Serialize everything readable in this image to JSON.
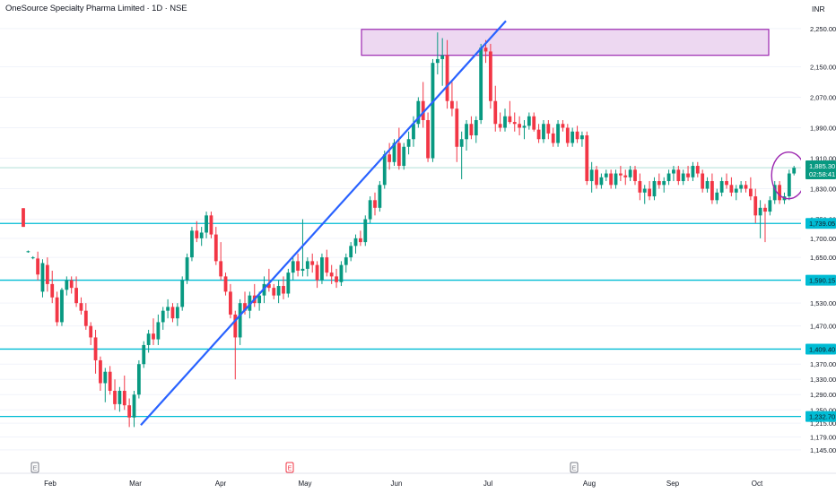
{
  "header": {
    "title": "OneSource Specialty Pharma Limited · 1D · NSE",
    "currency": "INR"
  },
  "colors": {
    "up": "#089981",
    "down": "#f23645",
    "trendline": "#2962ff",
    "support": "#00bcd4",
    "resistance_zone": "#9c27b0",
    "last_price_line": "#089981"
  },
  "chart_data": {
    "type": "candlestick",
    "title": "OneSource Specialty Pharma Limited · 1D · NSE",
    "currency": "INR",
    "ylim": [
      1126,
      2278
    ],
    "y_tick_labels": [
      "2,250.00",
      "2,150.00",
      "2,070.00",
      "1,990.00",
      "1,910.00",
      "1,830.00",
      "1,750.00",
      "1,700.00",
      "1,650.00",
      "1,590.00",
      "1,530.00",
      "1,470.00",
      "1,409.40",
      "1,370.00",
      "1,330.00",
      "1,290.00",
      "1,250.00",
      "1,215.00",
      "1,179.00",
      "1,145.00"
    ],
    "x_tick_labels": [
      "Feb",
      "Mar",
      "Apr",
      "May",
      "Jun",
      "Jul",
      "Aug",
      "Sep",
      "Oct"
    ],
    "earnings_markers": [
      {
        "label": "E",
        "month": "Feb",
        "color": "#787b86"
      },
      {
        "label": "E",
        "month": "May",
        "color": "#f23645"
      },
      {
        "label": "E",
        "month": "Aug",
        "color": "#787b86"
      }
    ],
    "last_price": {
      "price": "1,885.30",
      "countdown": "02:58:41"
    },
    "support_levels": [
      {
        "price": 1739.05,
        "label": "1,739.05"
      },
      {
        "price": 1590.15,
        "label": "1,590.15"
      },
      {
        "price": 1409.4,
        "label": "1,409.40"
      },
      {
        "price": 1232.7,
        "label": "1,232.70"
      }
    ],
    "resistance_zone": {
      "low": 2180,
      "high": 2248
    },
    "trendline": {
      "from_price": 1210,
      "from_month": "Mar",
      "to_price": 2270,
      "to_month": "Jul"
    },
    "highlight_circle": {
      "around": "latest candles near 1,885"
    },
    "candles": [
      {
        "o": 1779,
        "h": 1779,
        "l": 1730,
        "c": 1730
      },
      {
        "o": 1665,
        "h": 1668,
        "l": 1662,
        "c": 1666
      },
      {
        "o": 1648,
        "h": 1653,
        "l": 1645,
        "c": 1650
      },
      {
        "o": 1647,
        "h": 1665,
        "l": 1590,
        "c": 1605
      },
      {
        "o": 1560,
        "h": 1645,
        "l": 1545,
        "c": 1635
      },
      {
        "o": 1630,
        "h": 1650,
        "l": 1560,
        "c": 1580
      },
      {
        "o": 1580,
        "h": 1615,
        "l": 1530,
        "c": 1545
      },
      {
        "o": 1545,
        "h": 1560,
        "l": 1470,
        "c": 1480
      },
      {
        "o": 1480,
        "h": 1570,
        "l": 1470,
        "c": 1565
      },
      {
        "o": 1565,
        "h": 1600,
        "l": 1550,
        "c": 1590
      },
      {
        "o": 1590,
        "h": 1600,
        "l": 1555,
        "c": 1570
      },
      {
        "o": 1570,
        "h": 1600,
        "l": 1520,
        "c": 1530
      },
      {
        "o": 1530,
        "h": 1545,
        "l": 1500,
        "c": 1510
      },
      {
        "o": 1510,
        "h": 1530,
        "l": 1460,
        "c": 1470
      },
      {
        "o": 1470,
        "h": 1480,
        "l": 1420,
        "c": 1440
      },
      {
        "o": 1440,
        "h": 1460,
        "l": 1345,
        "c": 1380
      },
      {
        "o": 1380,
        "h": 1390,
        "l": 1300,
        "c": 1320
      },
      {
        "o": 1320,
        "h": 1360,
        "l": 1270,
        "c": 1350
      },
      {
        "o": 1350,
        "h": 1365,
        "l": 1290,
        "c": 1300
      },
      {
        "o": 1300,
        "h": 1330,
        "l": 1250,
        "c": 1265
      },
      {
        "o": 1265,
        "h": 1310,
        "l": 1245,
        "c": 1300
      },
      {
        "o": 1300,
        "h": 1340,
        "l": 1250,
        "c": 1262
      },
      {
        "o": 1262,
        "h": 1280,
        "l": 1205,
        "c": 1230
      },
      {
        "o": 1230,
        "h": 1300,
        "l": 1205,
        "c": 1290
      },
      {
        "o": 1290,
        "h": 1380,
        "l": 1280,
        "c": 1370
      },
      {
        "o": 1370,
        "h": 1430,
        "l": 1360,
        "c": 1420
      },
      {
        "o": 1420,
        "h": 1460,
        "l": 1400,
        "c": 1450
      },
      {
        "o": 1450,
        "h": 1490,
        "l": 1420,
        "c": 1435
      },
      {
        "o": 1435,
        "h": 1500,
        "l": 1420,
        "c": 1480
      },
      {
        "o": 1480,
        "h": 1520,
        "l": 1460,
        "c": 1510
      },
      {
        "o": 1510,
        "h": 1540,
        "l": 1490,
        "c": 1520
      },
      {
        "o": 1520,
        "h": 1530,
        "l": 1480,
        "c": 1490
      },
      {
        "o": 1490,
        "h": 1530,
        "l": 1470,
        "c": 1520
      },
      {
        "o": 1520,
        "h": 1600,
        "l": 1510,
        "c": 1590
      },
      {
        "o": 1590,
        "h": 1660,
        "l": 1580,
        "c": 1650
      },
      {
        "o": 1650,
        "h": 1730,
        "l": 1640,
        "c": 1720
      },
      {
        "o": 1720,
        "h": 1745,
        "l": 1690,
        "c": 1700
      },
      {
        "o": 1700,
        "h": 1730,
        "l": 1680,
        "c": 1715
      },
      {
        "o": 1715,
        "h": 1770,
        "l": 1700,
        "c": 1760
      },
      {
        "o": 1760,
        "h": 1770,
        "l": 1700,
        "c": 1710
      },
      {
        "o": 1710,
        "h": 1730,
        "l": 1630,
        "c": 1640
      },
      {
        "o": 1640,
        "h": 1690,
        "l": 1590,
        "c": 1600
      },
      {
        "o": 1600,
        "h": 1610,
        "l": 1550,
        "c": 1560
      },
      {
        "o": 1560,
        "h": 1580,
        "l": 1490,
        "c": 1500
      },
      {
        "o": 1500,
        "h": 1510,
        "l": 1330,
        "c": 1440
      },
      {
        "o": 1440,
        "h": 1540,
        "l": 1420,
        "c": 1530
      },
      {
        "o": 1530,
        "h": 1560,
        "l": 1500,
        "c": 1510
      },
      {
        "o": 1510,
        "h": 1560,
        "l": 1490,
        "c": 1550
      },
      {
        "o": 1550,
        "h": 1580,
        "l": 1520,
        "c": 1530
      },
      {
        "o": 1530,
        "h": 1560,
        "l": 1510,
        "c": 1550
      },
      {
        "o": 1550,
        "h": 1600,
        "l": 1530,
        "c": 1580
      },
      {
        "o": 1580,
        "h": 1620,
        "l": 1560,
        "c": 1570
      },
      {
        "o": 1570,
        "h": 1580,
        "l": 1540,
        "c": 1550
      },
      {
        "o": 1550,
        "h": 1590,
        "l": 1530,
        "c": 1575
      },
      {
        "o": 1575,
        "h": 1600,
        "l": 1540,
        "c": 1555
      },
      {
        "o": 1555,
        "h": 1620,
        "l": 1545,
        "c": 1610
      },
      {
        "o": 1610,
        "h": 1650,
        "l": 1590,
        "c": 1640
      },
      {
        "o": 1640,
        "h": 1660,
        "l": 1600,
        "c": 1615
      },
      {
        "o": 1615,
        "h": 1750,
        "l": 1600,
        "c": 1620
      },
      {
        "o": 1620,
        "h": 1650,
        "l": 1600,
        "c": 1640
      },
      {
        "o": 1640,
        "h": 1660,
        "l": 1610,
        "c": 1630
      },
      {
        "o": 1630,
        "h": 1640,
        "l": 1570,
        "c": 1590
      },
      {
        "o": 1590,
        "h": 1660,
        "l": 1580,
        "c": 1650
      },
      {
        "o": 1650,
        "h": 1670,
        "l": 1600,
        "c": 1610
      },
      {
        "o": 1610,
        "h": 1630,
        "l": 1580,
        "c": 1600
      },
      {
        "o": 1600,
        "h": 1620,
        "l": 1570,
        "c": 1585
      },
      {
        "o": 1585,
        "h": 1640,
        "l": 1575,
        "c": 1630
      },
      {
        "o": 1630,
        "h": 1660,
        "l": 1610,
        "c": 1650
      },
      {
        "o": 1650,
        "h": 1690,
        "l": 1640,
        "c": 1680
      },
      {
        "o": 1680,
        "h": 1710,
        "l": 1660,
        "c": 1700
      },
      {
        "o": 1700,
        "h": 1720,
        "l": 1680,
        "c": 1690
      },
      {
        "o": 1690,
        "h": 1760,
        "l": 1680,
        "c": 1750
      },
      {
        "o": 1750,
        "h": 1810,
        "l": 1740,
        "c": 1800
      },
      {
        "o": 1800,
        "h": 1820,
        "l": 1760,
        "c": 1780
      },
      {
        "o": 1780,
        "h": 1850,
        "l": 1770,
        "c": 1840
      },
      {
        "o": 1840,
        "h": 1930,
        "l": 1830,
        "c": 1920
      },
      {
        "o": 1920,
        "h": 1950,
        "l": 1880,
        "c": 1900
      },
      {
        "o": 1900,
        "h": 1960,
        "l": 1890,
        "c": 1950
      },
      {
        "o": 1950,
        "h": 1990,
        "l": 1880,
        "c": 1890
      },
      {
        "o": 1890,
        "h": 1950,
        "l": 1880,
        "c": 1940
      },
      {
        "o": 1940,
        "h": 1980,
        "l": 1920,
        "c": 1960
      },
      {
        "o": 1960,
        "h": 2020,
        "l": 1940,
        "c": 2000
      },
      {
        "o": 2000,
        "h": 2070,
        "l": 1990,
        "c": 2060
      },
      {
        "o": 2060,
        "h": 2110,
        "l": 1990,
        "c": 2010
      },
      {
        "o": 2010,
        "h": 2030,
        "l": 1900,
        "c": 1910
      },
      {
        "o": 1910,
        "h": 2170,
        "l": 1900,
        "c": 2160
      },
      {
        "o": 2160,
        "h": 2240,
        "l": 2130,
        "c": 2170
      },
      {
        "o": 2170,
        "h": 2225,
        "l": 2100,
        "c": 2180
      },
      {
        "o": 2180,
        "h": 2220,
        "l": 2040,
        "c": 2060
      },
      {
        "o": 2060,
        "h": 2110,
        "l": 2020,
        "c": 2040
      },
      {
        "o": 2040,
        "h": 2060,
        "l": 1900,
        "c": 1940
      },
      {
        "o": 1940,
        "h": 1980,
        "l": 1855,
        "c": 1960
      },
      {
        "o": 1960,
        "h": 2010,
        "l": 1930,
        "c": 2000
      },
      {
        "o": 2000,
        "h": 2020,
        "l": 1960,
        "c": 1970
      },
      {
        "o": 1970,
        "h": 2020,
        "l": 1950,
        "c": 2010
      },
      {
        "o": 2010,
        "h": 2210,
        "l": 2000,
        "c": 2200
      },
      {
        "o": 2200,
        "h": 2220,
        "l": 2160,
        "c": 2190
      },
      {
        "o": 2190,
        "h": 2210,
        "l": 2040,
        "c": 2060
      },
      {
        "o": 2060,
        "h": 2100,
        "l": 1980,
        "c": 2000
      },
      {
        "o": 2000,
        "h": 2030,
        "l": 1980,
        "c": 1990
      },
      {
        "o": 1990,
        "h": 2040,
        "l": 1980,
        "c": 2020
      },
      {
        "o": 2020,
        "h": 2060,
        "l": 2000,
        "c": 2005
      },
      {
        "o": 2005,
        "h": 2030,
        "l": 1980,
        "c": 2000
      },
      {
        "o": 2000,
        "h": 2020,
        "l": 1970,
        "c": 1990
      },
      {
        "o": 1990,
        "h": 2010,
        "l": 1960,
        "c": 1995
      },
      {
        "o": 1995,
        "h": 2030,
        "l": 1985,
        "c": 2020
      },
      {
        "o": 2020,
        "h": 2030,
        "l": 1980,
        "c": 1985
      },
      {
        "o": 1985,
        "h": 2000,
        "l": 1950,
        "c": 1960
      },
      {
        "o": 1960,
        "h": 2010,
        "l": 1950,
        "c": 2000
      },
      {
        "o": 2000,
        "h": 2010,
        "l": 1960,
        "c": 1975
      },
      {
        "o": 1975,
        "h": 1990,
        "l": 1940,
        "c": 1950
      },
      {
        "o": 1950,
        "h": 2010,
        "l": 1940,
        "c": 2000
      },
      {
        "o": 2000,
        "h": 2010,
        "l": 1980,
        "c": 1990
      },
      {
        "o": 1990,
        "h": 2000,
        "l": 1940,
        "c": 1950
      },
      {
        "o": 1950,
        "h": 1990,
        "l": 1940,
        "c": 1980
      },
      {
        "o": 1980,
        "h": 1995,
        "l": 1950,
        "c": 1960
      },
      {
        "o": 1960,
        "h": 1980,
        "l": 1940,
        "c": 1970
      },
      {
        "o": 1970,
        "h": 1980,
        "l": 1840,
        "c": 1850
      },
      {
        "o": 1850,
        "h": 1900,
        "l": 1820,
        "c": 1880
      },
      {
        "o": 1880,
        "h": 1890,
        "l": 1830,
        "c": 1840
      },
      {
        "o": 1840,
        "h": 1870,
        "l": 1830,
        "c": 1860
      },
      {
        "o": 1860,
        "h": 1880,
        "l": 1850,
        "c": 1870
      },
      {
        "o": 1870,
        "h": 1880,
        "l": 1830,
        "c": 1840
      },
      {
        "o": 1840,
        "h": 1880,
        "l": 1830,
        "c": 1870
      },
      {
        "o": 1870,
        "h": 1890,
        "l": 1850,
        "c": 1865
      },
      {
        "o": 1865,
        "h": 1880,
        "l": 1840,
        "c": 1860
      },
      {
        "o": 1860,
        "h": 1890,
        "l": 1850,
        "c": 1880
      },
      {
        "o": 1880,
        "h": 1890,
        "l": 1840,
        "c": 1850
      },
      {
        "o": 1850,
        "h": 1870,
        "l": 1800,
        "c": 1820
      },
      {
        "o": 1820,
        "h": 1840,
        "l": 1790,
        "c": 1830
      },
      {
        "o": 1830,
        "h": 1850,
        "l": 1800,
        "c": 1810
      },
      {
        "o": 1810,
        "h": 1860,
        "l": 1800,
        "c": 1850
      },
      {
        "o": 1850,
        "h": 1870,
        "l": 1830,
        "c": 1840
      },
      {
        "o": 1840,
        "h": 1860,
        "l": 1820,
        "c": 1850
      },
      {
        "o": 1850,
        "h": 1880,
        "l": 1840,
        "c": 1870
      },
      {
        "o": 1870,
        "h": 1890,
        "l": 1850,
        "c": 1880
      },
      {
        "o": 1880,
        "h": 1890,
        "l": 1840,
        "c": 1850
      },
      {
        "o": 1850,
        "h": 1880,
        "l": 1840,
        "c": 1870
      },
      {
        "o": 1870,
        "h": 1890,
        "l": 1850,
        "c": 1860
      },
      {
        "o": 1860,
        "h": 1900,
        "l": 1850,
        "c": 1890
      },
      {
        "o": 1890,
        "h": 1900,
        "l": 1860,
        "c": 1870
      },
      {
        "o": 1870,
        "h": 1880,
        "l": 1820,
        "c": 1830
      },
      {
        "o": 1830,
        "h": 1860,
        "l": 1820,
        "c": 1850
      },
      {
        "o": 1850,
        "h": 1870,
        "l": 1790,
        "c": 1800
      },
      {
        "o": 1800,
        "h": 1830,
        "l": 1790,
        "c": 1820
      },
      {
        "o": 1820,
        "h": 1860,
        "l": 1810,
        "c": 1850
      },
      {
        "o": 1850,
        "h": 1870,
        "l": 1830,
        "c": 1840
      },
      {
        "o": 1840,
        "h": 1860,
        "l": 1810,
        "c": 1820
      },
      {
        "o": 1820,
        "h": 1840,
        "l": 1800,
        "c": 1830
      },
      {
        "o": 1830,
        "h": 1850,
        "l": 1820,
        "c": 1840
      },
      {
        "o": 1840,
        "h": 1850,
        "l": 1820,
        "c": 1830
      },
      {
        "o": 1830,
        "h": 1860,
        "l": 1800,
        "c": 1810
      },
      {
        "o": 1810,
        "h": 1830,
        "l": 1740,
        "c": 1760
      },
      {
        "o": 1760,
        "h": 1800,
        "l": 1700,
        "c": 1780
      },
      {
        "o": 1780,
        "h": 1790,
        "l": 1690,
        "c": 1770
      },
      {
        "o": 1770,
        "h": 1810,
        "l": 1760,
        "c": 1800
      },
      {
        "o": 1800,
        "h": 1850,
        "l": 1790,
        "c": 1840
      },
      {
        "o": 1840,
        "h": 1850,
        "l": 1790,
        "c": 1800
      },
      {
        "o": 1800,
        "h": 1820,
        "l": 1790,
        "c": 1810
      },
      {
        "o": 1810,
        "h": 1880,
        "l": 1800,
        "c": 1870
      },
      {
        "o": 1870,
        "h": 1890,
        "l": 1865,
        "c": 1885
      }
    ]
  }
}
